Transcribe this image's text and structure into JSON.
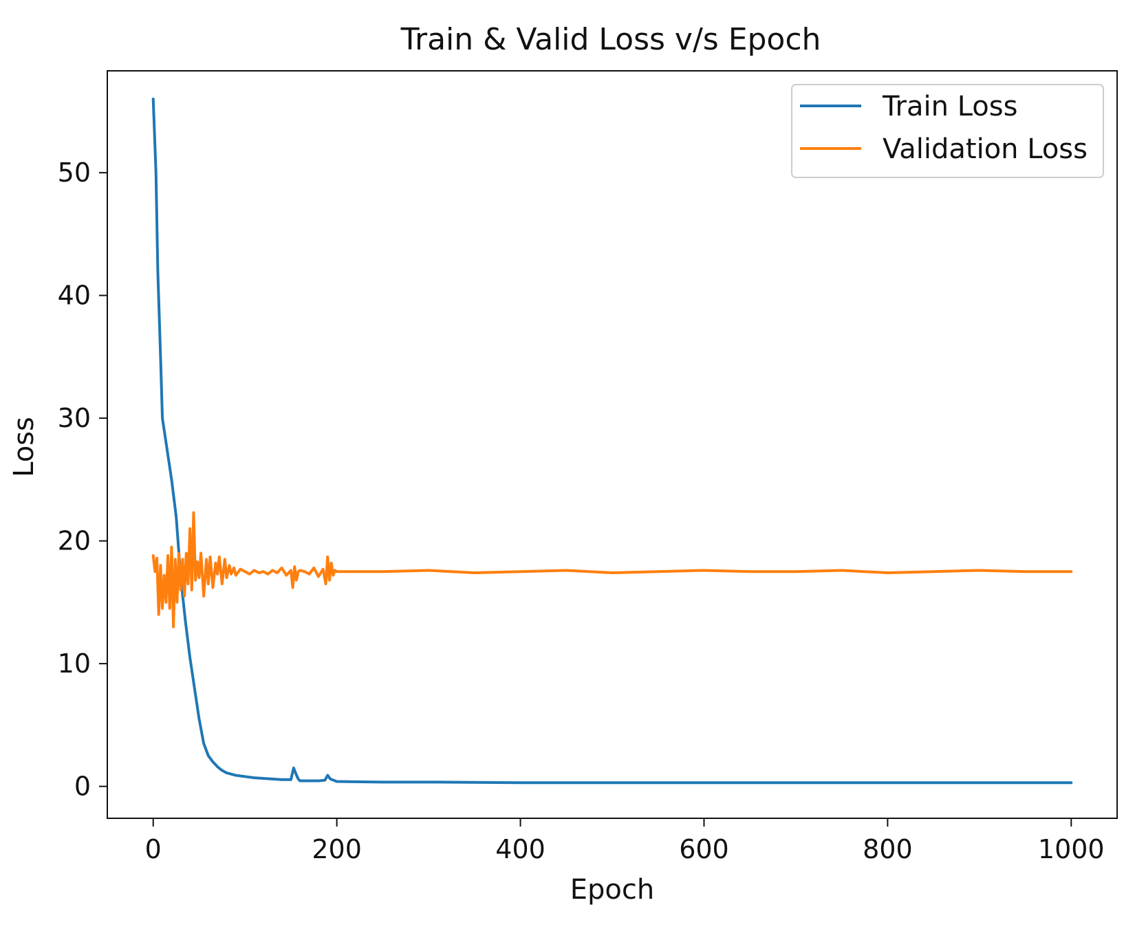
{
  "chart_data": {
    "type": "line",
    "title": "Train & Valid Loss v/s Epoch",
    "xlabel": "Epoch",
    "ylabel": "Loss",
    "xlim": [
      -50,
      1050
    ],
    "ylim": [
      -2.6,
      58.3
    ],
    "x_ticks": [
      0,
      200,
      400,
      600,
      800,
      1000
    ],
    "y_ticks": [
      0,
      10,
      20,
      30,
      40,
      50
    ],
    "grid": false,
    "legend_position": "top-right",
    "series": [
      {
        "name": "Train Loss",
        "color": "#1f77b4",
        "x": [
          0,
          3,
          5,
          8,
          10,
          15,
          20,
          25,
          30,
          35,
          40,
          45,
          50,
          55,
          60,
          65,
          70,
          75,
          80,
          90,
          100,
          110,
          120,
          130,
          140,
          150,
          153,
          155,
          158,
          160,
          170,
          180,
          187,
          190,
          193,
          200,
          250,
          300,
          400,
          500,
          600,
          700,
          800,
          900,
          1000
        ],
        "y": [
          56,
          50,
          42,
          35,
          30,
          27.5,
          25,
          22,
          17,
          13.5,
          10.5,
          8,
          5.5,
          3.5,
          2.5,
          2.0,
          1.6,
          1.3,
          1.1,
          0.9,
          0.8,
          0.7,
          0.65,
          0.6,
          0.55,
          0.55,
          1.5,
          1.1,
          0.6,
          0.45,
          0.45,
          0.45,
          0.5,
          0.9,
          0.6,
          0.4,
          0.35,
          0.35,
          0.3,
          0.3,
          0.3,
          0.3,
          0.3,
          0.3,
          0.3
        ]
      },
      {
        "name": "Validation Loss",
        "color": "#ff7f0e",
        "x": [
          0,
          2,
          4,
          6,
          8,
          10,
          12,
          14,
          16,
          18,
          20,
          22,
          24,
          26,
          28,
          30,
          32,
          34,
          36,
          38,
          40,
          42,
          44,
          46,
          48,
          50,
          52,
          55,
          58,
          60,
          62,
          65,
          68,
          70,
          72,
          75,
          78,
          80,
          83,
          85,
          88,
          90,
          95,
          100,
          105,
          110,
          115,
          120,
          125,
          130,
          135,
          140,
          145,
          150,
          152,
          154,
          156,
          158,
          160,
          165,
          170,
          175,
          180,
          185,
          188,
          190,
          192,
          194,
          196,
          198,
          200,
          250,
          300,
          350,
          400,
          450,
          500,
          550,
          600,
          650,
          700,
          750,
          800,
          850,
          900,
          950,
          1000
        ],
        "y": [
          18.8,
          17.5,
          18.6,
          14,
          18,
          14.5,
          17.2,
          15,
          18.8,
          14.5,
          19.5,
          13,
          18.5,
          15,
          19,
          16,
          18.5,
          15.5,
          19,
          16.5,
          21,
          16,
          22.3,
          16.8,
          18.3,
          17,
          19,
          15.5,
          18.5,
          16.5,
          18.7,
          16.2,
          18.2,
          17.3,
          18.7,
          16.5,
          18.5,
          17,
          18,
          17.3,
          17.8,
          17.2,
          17.7,
          17.5,
          17.3,
          17.6,
          17.4,
          17.5,
          17.3,
          17.6,
          17.4,
          17.8,
          17.2,
          17.6,
          16.2,
          17.9,
          16.8,
          17.5,
          17.6,
          17.5,
          17.3,
          17.8,
          17.1,
          17.7,
          16.5,
          18.7,
          16.8,
          18.2,
          17.2,
          17.6,
          17.5,
          17.5,
          17.6,
          17.4,
          17.5,
          17.6,
          17.4,
          17.5,
          17.6,
          17.5,
          17.5,
          17.6,
          17.4,
          17.5,
          17.6,
          17.5,
          17.5
        ]
      }
    ]
  }
}
